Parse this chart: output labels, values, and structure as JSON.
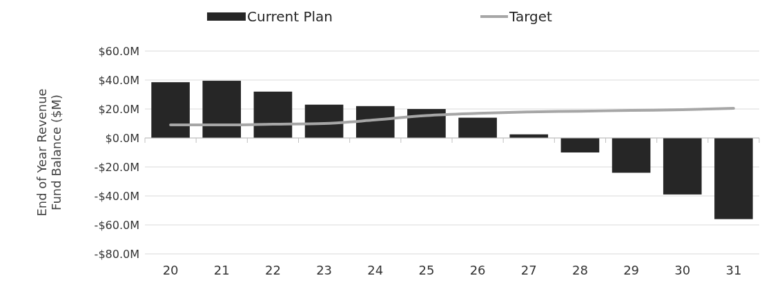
{
  "chart_data": {
    "type": "bar",
    "ylabel": "End of Year Revenue Fund Balance ($M)",
    "categories": [
      "20",
      "21",
      "22",
      "23",
      "24",
      "25",
      "26",
      "27",
      "28",
      "29",
      "30",
      "31"
    ],
    "series": [
      {
        "name": "Current Plan",
        "color": "#262626",
        "values": [
          38.5,
          39.5,
          32,
          23,
          22,
          20,
          14,
          2.5,
          -10,
          -24,
          -39,
          -56
        ]
      },
      {
        "name": "Target",
        "type": "line",
        "color": "#a6a6a6",
        "values": [
          9,
          9,
          9.5,
          10,
          12.5,
          15.5,
          17,
          18,
          18.5,
          19,
          19.5,
          20.5
        ]
      }
    ],
    "ylim": [
      -80,
      60
    ],
    "yticks": [
      {
        "value": -80,
        "label": "-$80.0M"
      },
      {
        "value": -60,
        "label": "-$60.0M"
      },
      {
        "value": -40,
        "label": "-$40.0M"
      },
      {
        "value": -20,
        "label": "-$20.0M"
      },
      {
        "value": 0,
        "label": "$0.0M"
      },
      {
        "value": 20,
        "label": "$20.0M"
      },
      {
        "value": 40,
        "label": "$40.0M"
      },
      {
        "value": 60,
        "label": "$60.0M"
      }
    ],
    "grid": "y",
    "legend": "top",
    "marker": "none",
    "line_style": "solid"
  }
}
